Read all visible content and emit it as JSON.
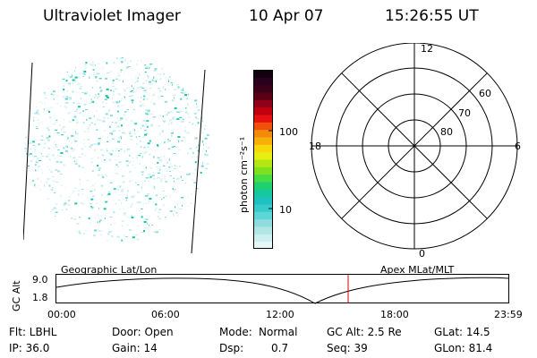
{
  "header": {
    "instrument": "Ultraviolet Imager",
    "date": "10 Apr 07",
    "time": "15:26:55 UT"
  },
  "colorbar": {
    "unit_label": "photon cm⁻²s⁻¹",
    "tick_labels": [
      "100",
      "10"
    ],
    "colors": [
      "#e6f7f7",
      "#ccefef",
      "#b0e6e6",
      "#8fdcdc",
      "#5fd6d6",
      "#36cccc",
      "#1fc0c0",
      "#16c8a0",
      "#1fd070",
      "#44dd44",
      "#7fe01f",
      "#b4e614",
      "#e6ee14",
      "#f7d80a",
      "#f7b00a",
      "#f38a0a",
      "#f0500a",
      "#e81010",
      "#c00010",
      "#900018",
      "#5a0014",
      "#3a0018",
      "#2a0020",
      "#100010"
    ]
  },
  "polar": {
    "mlt_labels": {
      "top": "12",
      "left": "18",
      "right": "6",
      "bottom": "0"
    },
    "lat_labels": [
      "60",
      "70",
      "80"
    ]
  },
  "plot": {
    "left_label": "Geographic Lat/Lon",
    "right_label": "Apex MLat/MLT",
    "axis_label": "GC Alt",
    "y_ticks": [
      "9.0",
      "1.8"
    ],
    "x_ticks": [
      "00:00",
      "06:00",
      "12:00",
      "18:00",
      "23:59"
    ]
  },
  "info": {
    "filter": "Flt: LBHL",
    "door": "Door: Open",
    "mode_label": "Mode:",
    "mode_value": "Normal",
    "gc_alt": "GC Alt: 2.5 Re",
    "glat": "GLat:  14.5",
    "ip": "IP: 36.0",
    "gain": "Gain: 14",
    "dsp_label": "Dsp:",
    "dsp_value": "0.7",
    "seq": "Seq: 39",
    "glon": "GLon:  81.4"
  },
  "colors": {
    "marker": "#e00000"
  }
}
